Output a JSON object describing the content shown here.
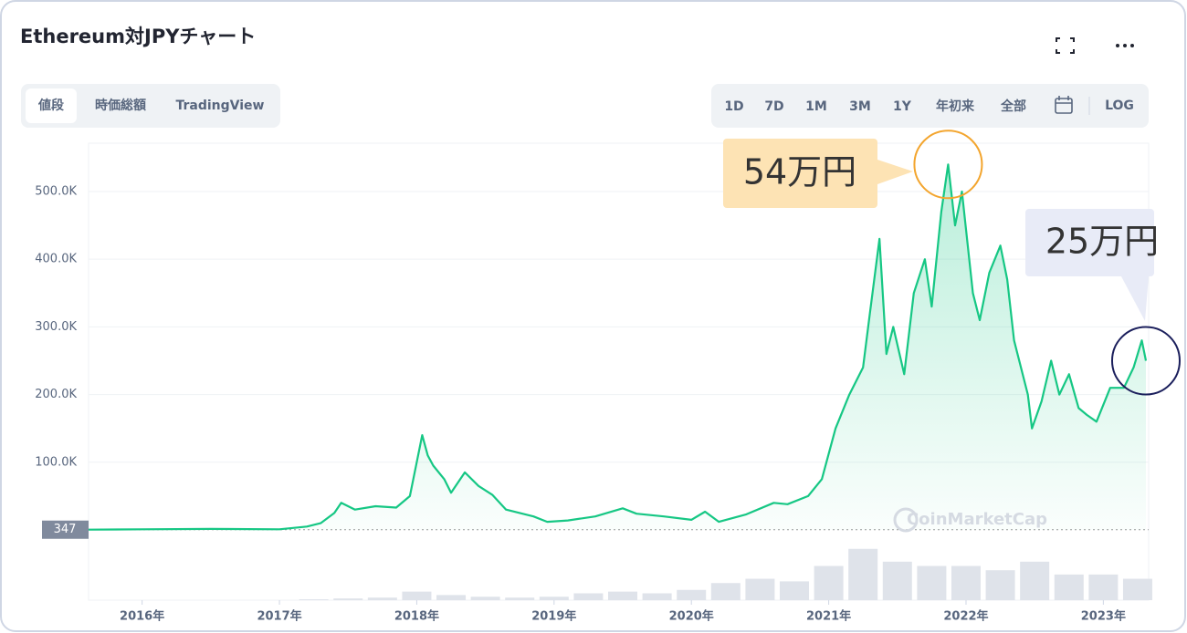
{
  "header": {
    "title": "Ethereum対JPYチャート",
    "tabs": [
      "値段",
      "時価総額",
      "TradingView"
    ],
    "ranges": [
      "1D",
      "7D",
      "1M",
      "3M",
      "1Y",
      "年初来",
      "全部"
    ],
    "log_button": "LOG",
    "watermark": "CoinMarketCap"
  },
  "chart_data": {
    "type": "line",
    "series": [
      {
        "name": "Ethereum",
        "color": "#16c784",
        "x": [
          2015.61,
          2016.0,
          2016.5,
          2017.0,
          2017.2,
          2017.3,
          2017.4,
          2017.45,
          2017.55,
          2017.7,
          2017.85,
          2017.95,
          2018.0,
          2018.04,
          2018.08,
          2018.12,
          2018.2,
          2018.25,
          2018.35,
          2018.45,
          2018.55,
          2018.65,
          2018.75,
          2018.85,
          2018.95,
          2019.1,
          2019.3,
          2019.5,
          2019.6,
          2019.8,
          2020.0,
          2020.1,
          2020.2,
          2020.4,
          2020.6,
          2020.7,
          2020.85,
          2020.95,
          2021.05,
          2021.15,
          2021.25,
          2021.3,
          2021.37,
          2021.42,
          2021.47,
          2021.55,
          2021.62,
          2021.7,
          2021.75,
          2021.82,
          2021.87,
          2021.92,
          2021.97,
          2022.05,
          2022.1,
          2022.17,
          2022.25,
          2022.3,
          2022.35,
          2022.45,
          2022.48,
          2022.55,
          2022.62,
          2022.68,
          2022.75,
          2022.82,
          2022.88,
          2022.95,
          2023.05,
          2023.15,
          2023.22,
          2023.28,
          2023.31
        ],
        "values": [
          347,
          1000,
          1500,
          1000,
          5000,
          10000,
          25000,
          40000,
          30000,
          35000,
          33000,
          50000,
          100000,
          140000,
          110000,
          95000,
          75000,
          55000,
          85000,
          65000,
          52000,
          30000,
          25000,
          20000,
          12000,
          14000,
          20000,
          32000,
          24000,
          20000,
          15000,
          27000,
          12000,
          23000,
          40000,
          38000,
          50000,
          75000,
          150000,
          200000,
          240000,
          320000,
          430000,
          260000,
          300000,
          230000,
          350000,
          400000,
          330000,
          470000,
          540000,
          450000,
          500000,
          350000,
          310000,
          380000,
          420000,
          370000,
          280000,
          200000,
          150000,
          190000,
          250000,
          200000,
          230000,
          180000,
          170000,
          160000,
          210000,
          210000,
          240000,
          280000,
          250000
        ]
      }
    ],
    "volume": {
      "color": "#dfe3ea",
      "x": [
        2015.75,
        2016.0,
        2016.25,
        2016.5,
        2016.75,
        2017.0,
        2017.25,
        2017.5,
        2017.75,
        2018.0,
        2018.25,
        2018.5,
        2018.75,
        2019.0,
        2019.25,
        2019.5,
        2019.75,
        2020.0,
        2020.25,
        2020.5,
        2020.75,
        2021.0,
        2021.25,
        2021.5,
        2021.75,
        2022.0,
        2022.25,
        2022.5,
        2022.75,
        2023.0,
        2023.25
      ],
      "values": [
        0,
        0,
        0,
        0,
        0,
        0,
        1,
        2,
        3,
        10,
        6,
        4,
        3,
        4,
        8,
        10,
        8,
        12,
        20,
        25,
        22,
        40,
        60,
        45,
        40,
        40,
        35,
        45,
        30,
        30,
        25
      ],
      "ylim": [
        0,
        80
      ]
    },
    "baseline_value": 347,
    "xlim": [
      2015.61,
      2023.33
    ],
    "xticks": [
      {
        "value": 2016,
        "label": "2016年"
      },
      {
        "value": 2017,
        "label": "2017年"
      },
      {
        "value": 2018,
        "label": "2018年"
      },
      {
        "value": 2019,
        "label": "2019年"
      },
      {
        "value": 2020,
        "label": "2020年"
      },
      {
        "value": 2021,
        "label": "2021年"
      },
      {
        "value": 2022,
        "label": "2022年"
      },
      {
        "value": 2023,
        "label": "2023年"
      }
    ],
    "ylim": [
      0,
      571400
    ],
    "yticks": [
      {
        "value": 100000,
        "label": "100.0K"
      },
      {
        "value": 200000,
        "label": "200.0K"
      },
      {
        "value": 300000,
        "label": "300.0K"
      },
      {
        "value": 400000,
        "label": "400.0K"
      },
      {
        "value": 500000,
        "label": "500.0K"
      }
    ],
    "grid": true,
    "annotations": [
      {
        "text": "54万円",
        "x": 2021.87,
        "y": 540000
      },
      {
        "text": "25万円",
        "x": 2023.31,
        "y": 250000
      }
    ]
  }
}
